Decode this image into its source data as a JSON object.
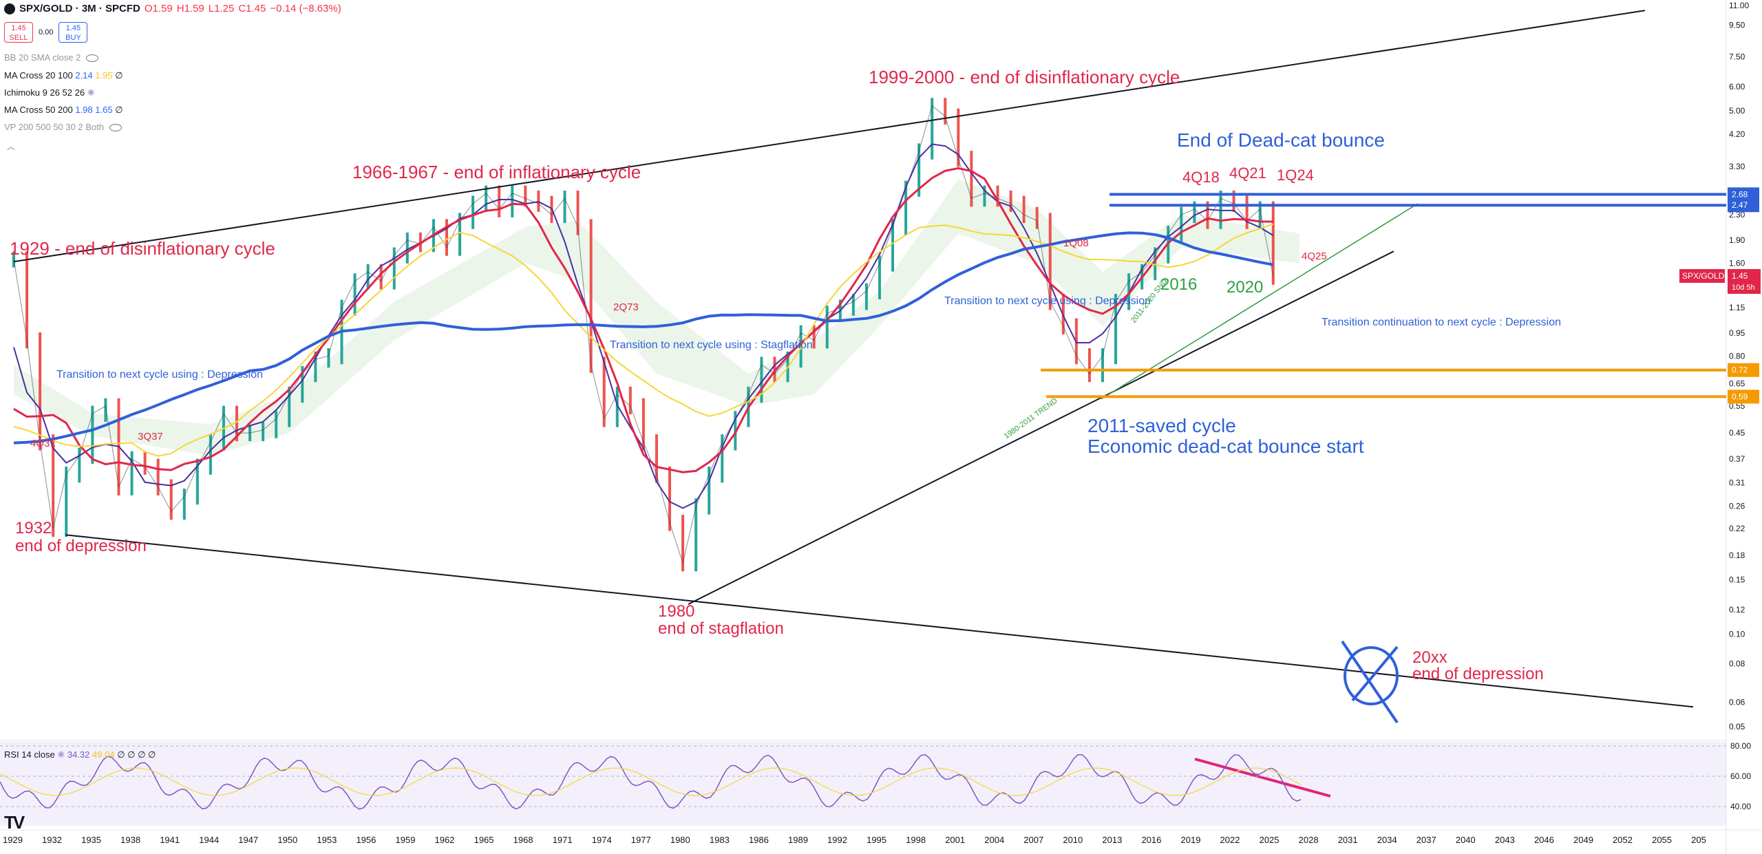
{
  "header": {
    "symbol": "SPX/GOLD · 3M · SPCFD",
    "open": "O1.59",
    "high": "H1.59",
    "low": "L1.25",
    "close": "C1.45",
    "change": "−0.14 (−8.63%)"
  },
  "trade": {
    "sell_price": "1.45",
    "sell_label": "SELL",
    "spread": "0.00",
    "buy_price": "1.45",
    "buy_label": "BUY"
  },
  "indicators": [
    {
      "name": "BB 20 SMA close 2",
      "v1": "",
      "v2": "",
      "v3": ""
    },
    {
      "name": "MA Cross 20 100",
      "v1": "2.14",
      "v2": "1.95",
      "v3": "∅"
    },
    {
      "name": "Ichimoku 9 26 52 26",
      "v1": "",
      "v2": "",
      "v3": ""
    },
    {
      "name": "MA Cross 50 200",
      "v1": "1.98",
      "v2": "1.65",
      "v3": "∅"
    },
    {
      "name": "VP 200 500 50 30 2 Both",
      "v1": "",
      "v2": "",
      "v3": ""
    }
  ],
  "rsi_legend": {
    "name": "RSI 14 close",
    "v1": "34.32",
    "v2": "49.04",
    "v3": "∅ ∅ ∅ ∅"
  },
  "colors": {
    "red": "#e0274a",
    "blue": "#2f60d8",
    "black": "#131722",
    "orange": "#f59a00",
    "green": "#2e9e40",
    "purple": "#4a2fa0",
    "yellow": "#f5d638"
  },
  "chart_data": {
    "type": "line",
    "title": "SPX/GOLD · 3M · SPCFD",
    "scale": "log",
    "y_ticks": [
      "11.00",
      "9.50",
      "7.50",
      "6.00",
      "5.00",
      "4.20",
      "3.30",
      "2.30",
      "1.90",
      "1.60",
      "1.15",
      "0.95",
      "0.80",
      "0.65",
      "0.55",
      "0.45",
      "0.37",
      "0.31",
      "0.26",
      "0.22",
      "0.18",
      "0.15",
      "0.12",
      "0.10",
      "0.08",
      "0.06",
      "0.05"
    ],
    "x_ticks": [
      "1929",
      "1932",
      "1935",
      "1938",
      "1941",
      "1944",
      "1947",
      "1950",
      "1953",
      "1956",
      "1959",
      "1962",
      "1965",
      "1968",
      "1971",
      "1974",
      "1977",
      "1980",
      "1983",
      "1986",
      "1989",
      "1992",
      "1995",
      "1998",
      "2001",
      "2004",
      "2007",
      "2010",
      "2013",
      "2016",
      "2019",
      "2022",
      "2025",
      "2028",
      "2031",
      "2034",
      "2037",
      "2040",
      "2043",
      "2046",
      "2049",
      "2052",
      "2055",
      "205"
    ],
    "ylim": [
      0.045,
      11
    ],
    "xlim": [
      1929,
      2057
    ],
    "series": [
      {
        "x": [
          1929,
          1930,
          1931,
          1932,
          1933,
          1934,
          1935,
          1936,
          1937,
          1938,
          1939,
          1940,
          1941,
          1942,
          1943,
          1944,
          1945,
          1946,
          1947,
          1948,
          1949,
          1950,
          1951,
          1952,
          1953,
          1954,
          1955,
          1956,
          1957,
          1958,
          1959,
          1960,
          1961,
          1962,
          1963,
          1964,
          1965,
          1966,
          1967,
          1968,
          1969,
          1970,
          1971,
          1972,
          1973,
          1974,
          1975,
          1976,
          1977,
          1978,
          1979,
          1980,
          1981,
          1982,
          1983,
          1984,
          1985,
          1986,
          1987,
          1988,
          1989,
          1990,
          1991,
          1992,
          1993,
          1994,
          1995,
          1996,
          1997,
          1998,
          1999,
          2000,
          2001,
          2002,
          2003,
          2004,
          2005,
          2006,
          2007,
          2008,
          2009,
          2010,
          2011,
          2012,
          2013,
          2014,
          2015,
          2016,
          2017,
          2018,
          2019,
          2020,
          2021,
          2022,
          2023,
          2024,
          2025
        ],
        "y": [
          1.65,
          0.9,
          0.42,
          0.22,
          0.33,
          0.38,
          0.52,
          0.55,
          0.3,
          0.37,
          0.35,
          0.3,
          0.25,
          0.28,
          0.35,
          0.42,
          0.52,
          0.45,
          0.45,
          0.46,
          0.5,
          0.6,
          0.7,
          0.78,
          0.8,
          1.15,
          1.4,
          1.5,
          1.4,
          1.7,
          1.9,
          1.85,
          2.1,
          1.8,
          2.2,
          2.5,
          2.7,
          2.4,
          2.7,
          2.6,
          2.5,
          2.3,
          2.6,
          2.1,
          0.75,
          0.5,
          0.6,
          0.55,
          0.42,
          0.33,
          0.23,
          0.17,
          0.26,
          0.33,
          0.42,
          0.5,
          0.6,
          0.75,
          0.7,
          0.78,
          0.95,
          0.9,
          1.1,
          1.15,
          1.2,
          1.3,
          1.6,
          2.1,
          2.8,
          3.7,
          5.2,
          4.8,
          3.5,
          2.6,
          2.7,
          2.6,
          2.5,
          2.3,
          2.2,
          1.2,
          1.0,
          0.8,
          0.7,
          0.8,
          1.2,
          1.4,
          1.5,
          1.7,
          2.0,
          2.3,
          2.4,
          2.2,
          2.6,
          2.5,
          2.2,
          2.4,
          1.45
        ]
      }
    ],
    "annotations": [
      "1929 - end of disinflationary cycle",
      "1966-1967 - end of inflationary cycle",
      "1999-2000 - end of disinflationary cycle",
      "End of Dead-cat bounce",
      "4Q18",
      "4Q21",
      "1Q24",
      "1932",
      "end of depression",
      "1980",
      "end of stagflation",
      "2011-saved cycle",
      "Economic dead-cat bounce start",
      "20xx",
      "Transition to next cycle using : Depression",
      "Transition to next cycle using : Stagflation",
      "Transition to next cycle using : Depression",
      "Transition continuation to next cycle  : Depression",
      "4Q31",
      "3Q37",
      "2Q73",
      "1Q08",
      "4Q25",
      "2016",
      "2020",
      "1980-2011 TREND",
      "2011-2020 SND"
    ],
    "price_labels": {
      "last": "1.45",
      "last_name": "SPX/GOLD",
      "countdown": "10d 5h",
      "level_a": "2.68",
      "level_b": "2.47",
      "level_c": "0.72",
      "level_d": "0.59"
    },
    "rsi": {
      "y_ticks": [
        "80.00",
        "60.00",
        "40.00"
      ]
    }
  }
}
